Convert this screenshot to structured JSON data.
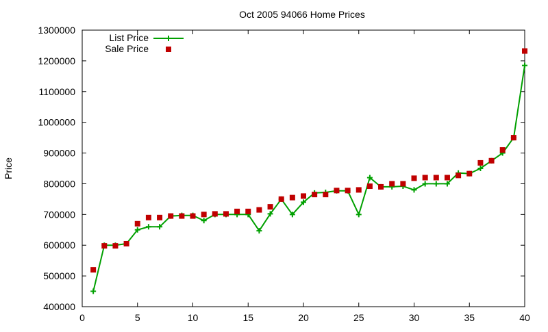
{
  "chart_data": {
    "type": "line",
    "title": "Oct 2005 94066 Home Prices",
    "xlabel": "",
    "ylabel": "Price",
    "xlim": [
      0,
      40
    ],
    "ylim": [
      400000,
      1300000
    ],
    "x_ticks": [
      0,
      5,
      10,
      15,
      20,
      25,
      30,
      35,
      40
    ],
    "y_ticks": [
      400000,
      500000,
      600000,
      700000,
      800000,
      900000,
      1000000,
      1100000,
      1200000,
      1300000
    ],
    "grid": false,
    "legend_position": "top-left",
    "colors": {
      "list": "#00a000",
      "sale": "#c00000"
    },
    "x": [
      1,
      2,
      3,
      4,
      5,
      6,
      7,
      8,
      9,
      10,
      11,
      12,
      13,
      14,
      15,
      16,
      17,
      18,
      19,
      20,
      21,
      22,
      23,
      24,
      25,
      26,
      27,
      28,
      29,
      30,
      31,
      32,
      33,
      34,
      35,
      36,
      37,
      38,
      39,
      40
    ],
    "series": [
      {
        "name": "List Price",
        "style": "line-plus",
        "values": [
          450000,
          600000,
          600000,
          605000,
          650000,
          660000,
          660000,
          695000,
          697000,
          697000,
          680000,
          700000,
          700000,
          700000,
          700000,
          647000,
          702000,
          750000,
          700000,
          740000,
          770000,
          772000,
          777000,
          777000,
          700000,
          820000,
          790000,
          790000,
          792000,
          780000,
          800000,
          800000,
          800000,
          835000,
          833000,
          850000,
          875000,
          900000,
          950000,
          1185000
        ]
      },
      {
        "name": "Sale Price",
        "style": "marker-square",
        "values": [
          520000,
          598000,
          598000,
          605000,
          670000,
          690000,
          690000,
          695000,
          695000,
          695000,
          700000,
          702000,
          702000,
          710000,
          710000,
          715000,
          725000,
          750000,
          755000,
          760000,
          765000,
          765000,
          778000,
          778000,
          780000,
          792000,
          790000,
          800000,
          800000,
          818000,
          820000,
          820000,
          820000,
          827000,
          833000,
          868000,
          875000,
          910000,
          950000,
          1232000
        ]
      }
    ]
  }
}
